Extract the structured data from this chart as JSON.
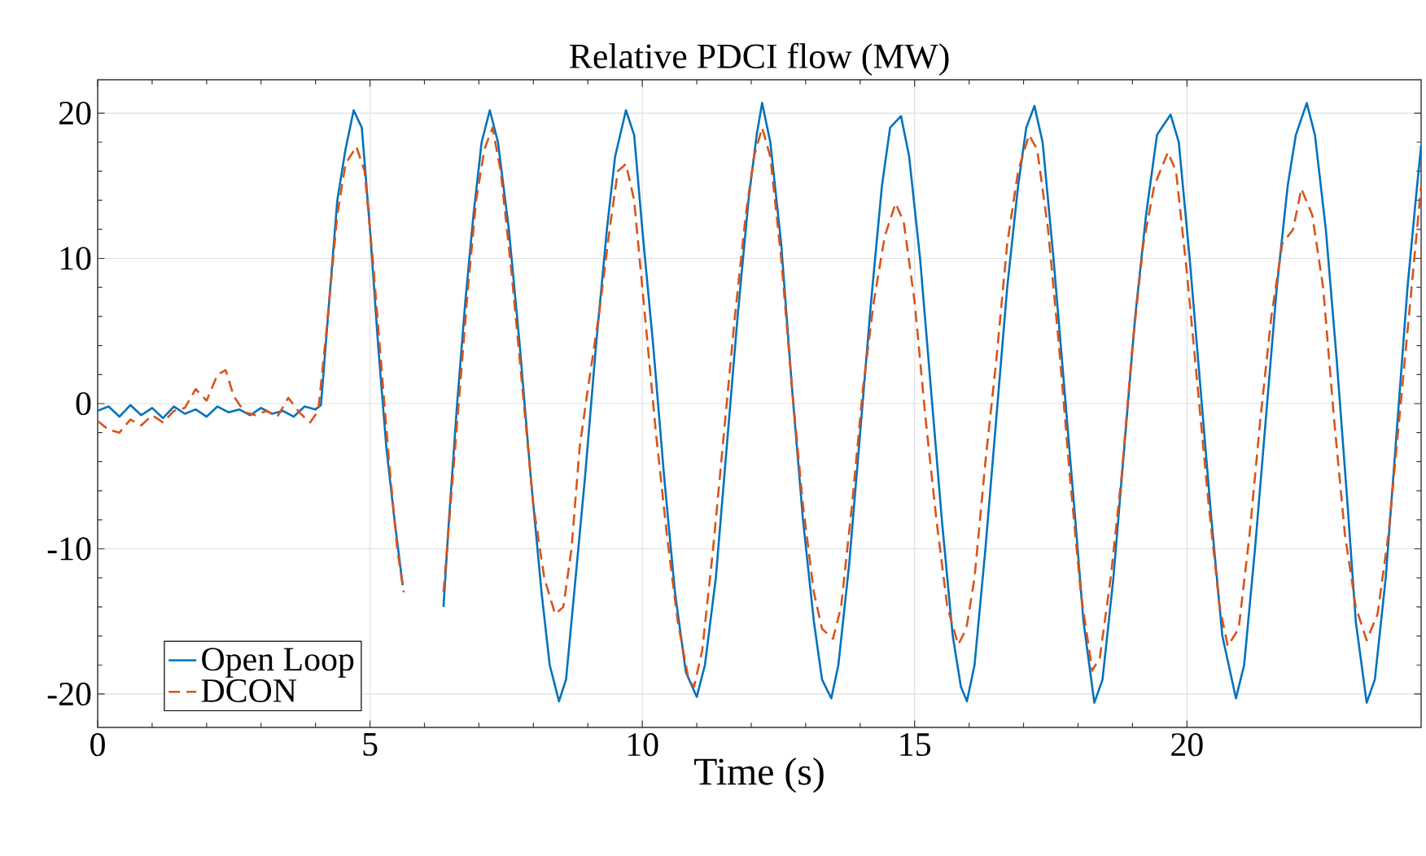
{
  "chart_data": {
    "type": "line",
    "title": "Relative PDCI flow (MW)",
    "xlabel": "Time (s)",
    "xlim": [
      0,
      24.3
    ],
    "ylim": [
      -22.3,
      22.3
    ],
    "xticks": [
      0,
      5,
      10,
      15,
      20
    ],
    "yticks": [
      -20,
      -10,
      0,
      10,
      20
    ],
    "grid": true,
    "legend": "bottom left",
    "marker": "none",
    "series": [
      {
        "name": "Open Loop",
        "color": "#0072bd",
        "line_style": "solid",
        "x": [
          0,
          0.2,
          0.4,
          0.6,
          0.8,
          1.0,
          1.2,
          1.4,
          1.6,
          1.8,
          2.0,
          2.2,
          2.4,
          2.6,
          2.8,
          3.0,
          3.2,
          3.4,
          3.6,
          3.8,
          4.0,
          4.1,
          4.25,
          4.4,
          4.55,
          4.7,
          4.85,
          5.0,
          5.15,
          5.3,
          5.45,
          5.6,
          5.7,
          6.3,
          6.35,
          6.45,
          6.6,
          6.75,
          6.9,
          7.05,
          7.2,
          7.35,
          7.55,
          7.75,
          7.95,
          8.15,
          8.3,
          8.47,
          8.6,
          8.75,
          8.95,
          9.15,
          9.35,
          9.5,
          9.7,
          9.85,
          10.0,
          10.2,
          10.4,
          10.6,
          10.8,
          11.0,
          11.15,
          11.35,
          11.55,
          11.75,
          11.95,
          12.1,
          12.2,
          12.35,
          12.55,
          12.75,
          12.95,
          13.15,
          13.3,
          13.47,
          13.6,
          13.8,
          14.0,
          14.2,
          14.4,
          14.55,
          14.75,
          14.9,
          15.1,
          15.3,
          15.5,
          15.7,
          15.85,
          15.96,
          16.1,
          16.3,
          16.5,
          16.7,
          16.9,
          17.05,
          17.2,
          17.35,
          17.55,
          17.75,
          17.95,
          18.1,
          18.3,
          18.45,
          18.65,
          18.85,
          19.05,
          19.25,
          19.45,
          19.7,
          19.85,
          20.05,
          20.25,
          20.45,
          20.65,
          20.9,
          21.05,
          21.25,
          21.45,
          21.65,
          21.85,
          22.0,
          22.2,
          22.35,
          22.55,
          22.75,
          22.95,
          23.1,
          23.3,
          23.45,
          23.65,
          23.85,
          24.05,
          24.2,
          24.3
        ],
        "values": [
          -0.5,
          -0.2,
          -0.9,
          -0.1,
          -0.8,
          -0.3,
          -1.0,
          -0.2,
          -0.7,
          -0.4,
          -0.9,
          -0.2,
          -0.6,
          -0.4,
          -0.8,
          -0.3,
          -0.7,
          -0.5,
          -0.9,
          -0.2,
          -0.4,
          -0.1,
          7,
          14,
          17.5,
          20.2,
          19,
          12,
          4,
          -3,
          -8,
          -12.5,
          null,
          null,
          -14,
          -8,
          0,
          7,
          13,
          18,
          20.2,
          18,
          12,
          4,
          -5,
          -13,
          -18,
          -20.5,
          -19,
          -13,
          -5,
          4,
          12,
          17,
          20.2,
          18.5,
          12,
          4,
          -5,
          -13,
          -18.5,
          -20.2,
          -18,
          -12,
          -3,
          6,
          14,
          18.5,
          20.7,
          18,
          11,
          1,
          -8,
          -15,
          -19,
          -20.3,
          -18,
          -11,
          -2,
          7,
          15,
          19,
          19.8,
          17,
          10,
          1,
          -8,
          -16,
          -19.5,
          -20.5,
          -18,
          -10,
          -1,
          8,
          15,
          19,
          20.5,
          18,
          10,
          1,
          -8,
          -15,
          -20.6,
          -19,
          -12,
          -3,
          6,
          13,
          18.5,
          19.9,
          18,
          10,
          1,
          -8,
          -16,
          -20.3,
          -18,
          -10,
          -1,
          8,
          15,
          18.5,
          20.7,
          18.5,
          12,
          3,
          -7,
          -15,
          -20.6,
          -19,
          -12,
          -2,
          8,
          14,
          17.8
        ]
      },
      {
        "name": "DCON",
        "color": "#d95319",
        "line_style": "dashed",
        "x": [
          0,
          0.2,
          0.4,
          0.6,
          0.8,
          1.0,
          1.2,
          1.4,
          1.6,
          1.8,
          2.0,
          2.2,
          2.35,
          2.5,
          2.7,
          2.9,
          3.1,
          3.3,
          3.5,
          3.7,
          3.9,
          4.05,
          4.2,
          4.4,
          4.55,
          4.75,
          4.9,
          5.05,
          5.2,
          5.35,
          5.5,
          5.62,
          5.7,
          6.3,
          6.35,
          6.5,
          6.65,
          6.8,
          6.95,
          7.1,
          7.25,
          7.4,
          7.6,
          7.8,
          8.0,
          8.2,
          8.4,
          8.55,
          8.7,
          8.85,
          9.0,
          9.2,
          9.4,
          9.55,
          9.7,
          9.85,
          10.05,
          10.25,
          10.45,
          10.65,
          10.85,
          10.95,
          11.1,
          11.3,
          11.5,
          11.7,
          11.9,
          12.05,
          12.2,
          12.35,
          12.55,
          12.75,
          12.95,
          13.15,
          13.3,
          13.5,
          13.65,
          13.85,
          14.05,
          14.25,
          14.45,
          14.65,
          14.8,
          15.0,
          15.2,
          15.4,
          15.6,
          15.8,
          15.95,
          16.1,
          16.3,
          16.5,
          16.7,
          16.9,
          17.1,
          17.25,
          17.45,
          17.65,
          17.85,
          18.05,
          18.26,
          18.4,
          18.6,
          18.8,
          19.0,
          19.2,
          19.4,
          19.65,
          19.8,
          20.0,
          20.2,
          20.4,
          20.6,
          20.75,
          20.95,
          21.15,
          21.35,
          21.55,
          21.75,
          21.95,
          22.1,
          22.3,
          22.5,
          22.7,
          22.9,
          23.1,
          23.3,
          23.5,
          23.7,
          23.9,
          24.1,
          24.3
        ],
        "values": [
          -1.2,
          -1.8,
          -2,
          -1.1,
          -1.5,
          -0.8,
          -1.3,
          -0.5,
          -0.3,
          1.0,
          0.2,
          2.0,
          2.3,
          0.5,
          -0.6,
          -0.8,
          -0.5,
          -0.9,
          0.4,
          -0.6,
          -1.3,
          -0.5,
          5,
          13,
          16.5,
          17.7,
          16,
          10,
          3,
          -4,
          -10,
          -13,
          null,
          null,
          -13,
          -6,
          1,
          8,
          14,
          17.5,
          19,
          16,
          9,
          1,
          -7,
          -12,
          -14.5,
          -14,
          -10,
          -3,
          1,
          6,
          12,
          16,
          16.5,
          14,
          6,
          -2,
          -9,
          -15,
          -19,
          -19.5,
          -17,
          -10,
          -2,
          6,
          13,
          17,
          19,
          17,
          10,
          1,
          -7,
          -13,
          -15.5,
          -16.2,
          -14,
          -7,
          1,
          7,
          11.5,
          13.8,
          12.5,
          7,
          -1,
          -8,
          -14,
          -16.6,
          -15.5,
          -12,
          -4,
          3,
          11,
          16,
          18.5,
          17.5,
          12,
          4,
          -5,
          -13,
          -18.4,
          -17.5,
          -12,
          -5,
          4,
          11,
          15,
          17.3,
          16,
          9,
          1,
          -7,
          -14,
          -16.7,
          -15.5,
          -9,
          -1,
          6,
          11,
          12,
          14.8,
          13,
          8,
          -1,
          -9,
          -14,
          -16.3,
          -14.5,
          -9,
          -1,
          7,
          15
        ]
      }
    ]
  }
}
